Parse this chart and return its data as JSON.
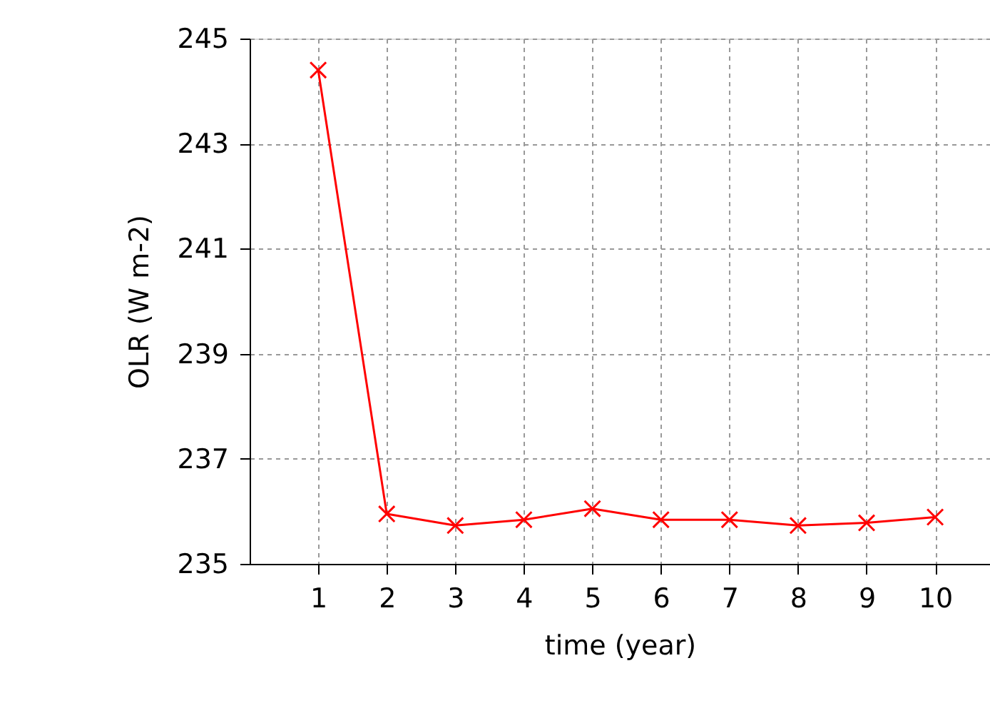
{
  "chart_data": {
    "type": "line",
    "xlabel": "time (year)",
    "ylabel": "OLR (W m-2)",
    "x": [
      1,
      2,
      3,
      4,
      5,
      6,
      7,
      8,
      9,
      10
    ],
    "series": [
      {
        "color": "#ff0000",
        "values": [
          244.4,
          235.95,
          235.73,
          235.84,
          236.05,
          235.84,
          235.84,
          235.73,
          235.78,
          235.89
        ]
      }
    ],
    "xlim": [
      0,
      10.8
    ],
    "xticks": [
      1,
      2,
      3,
      4,
      5,
      6,
      7,
      8,
      9,
      10
    ],
    "ylim": [
      235,
      245
    ],
    "yticks": [
      235,
      237,
      239,
      241,
      243,
      245
    ],
    "grid": true,
    "marker": "cross",
    "line_style": "solid"
  }
}
